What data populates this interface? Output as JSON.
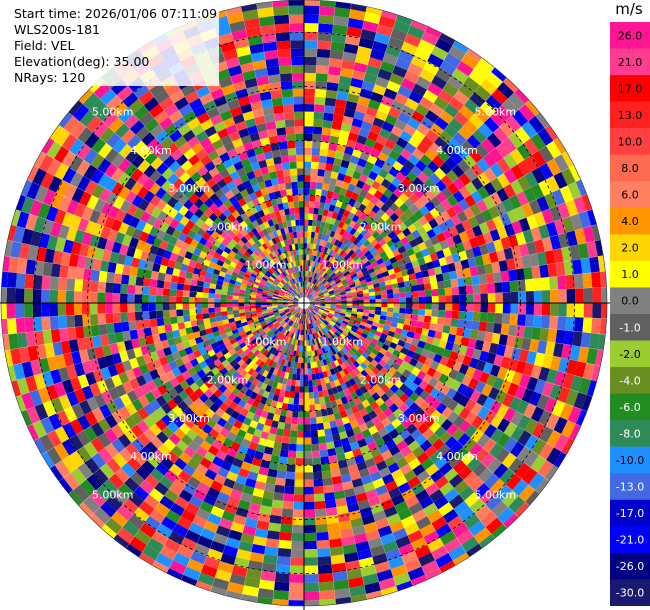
{
  "header": {
    "start_time": "Start time: 2026/01/06 07:11:09",
    "instrument": "WLS200s-181",
    "field": "Field: VEL",
    "elevation": "Elevation(deg): 35.00",
    "nrays": "NRays: 120"
  },
  "colorbar": {
    "unit": "m/s",
    "ticks": [
      "26.0",
      "21.0",
      "17.0",
      "13.0",
      "10.0",
      "8.0",
      "6.0",
      "4.0",
      "2.0",
      "1.0",
      "0.0",
      "-1.0",
      "-2.0",
      "-4.0",
      "-6.0",
      "-8.0",
      "-10.0",
      "-13.0",
      "-17.0",
      "-21.0",
      "-26.0",
      "-30.0"
    ],
    "colors": [
      "#ff1493",
      "#ff3d8f",
      "#ff0000",
      "#ff2020",
      "#ff4040",
      "#ff6a50",
      "#ff8060",
      "#ff9400",
      "#ffd700",
      "#ffff00",
      "#808080",
      "#606060",
      "#9acd32",
      "#6b8e23",
      "#228b22",
      "#2e8b57",
      "#1e90ff",
      "#4169e1",
      "#0000cd",
      "#0000ff",
      "#000080",
      "#191970"
    ]
  },
  "chart_data": {
    "type": "heatmap",
    "projection": "polar PPI scan",
    "range_rings_km": [
      1,
      2,
      3,
      4,
      5
    ],
    "range_ring_labels": [
      "1.00km",
      "2.00km",
      "3.00km",
      "4.00km",
      "5.00km"
    ],
    "max_range_km": 5.6,
    "n_rays": 120,
    "value_range": [
      -30.0,
      26.0
    ],
    "value_unit": "m/s"
  }
}
